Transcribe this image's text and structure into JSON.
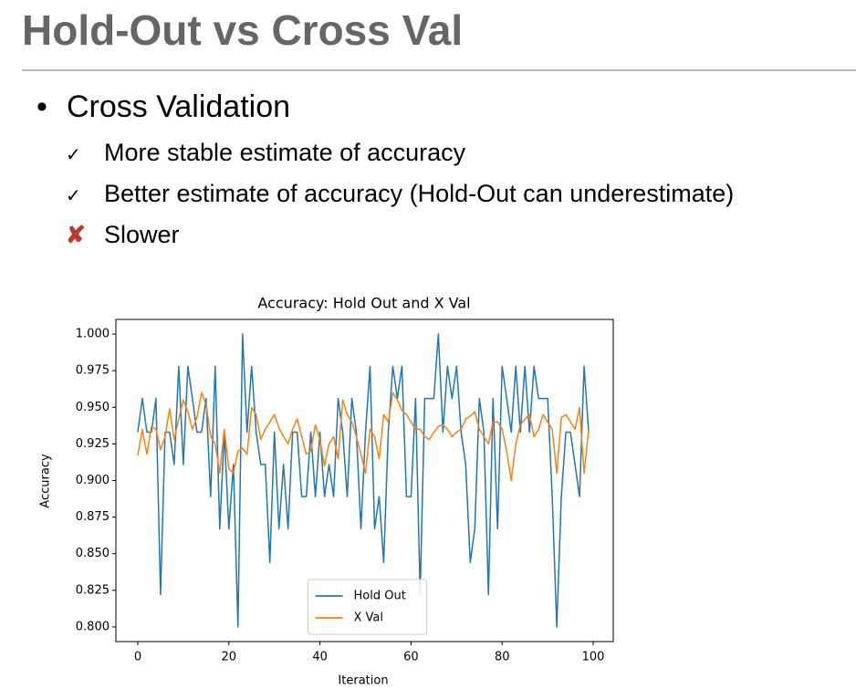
{
  "slide": {
    "title": "Hold-Out vs Cross Val",
    "bullet": "Cross Validation",
    "items": [
      {
        "mark": "✓",
        "text": "More stable estimate of accuracy"
      },
      {
        "mark": "✓",
        "text": "Better estimate of accuracy (Hold-Out can underestimate)"
      },
      {
        "mark": "✘",
        "text": "Slower"
      }
    ]
  },
  "chart_data": {
    "type": "line",
    "title": "Accuracy: Hold Out and X Val",
    "x_label": "Iteration",
    "y_label": "Accuracy",
    "x": [
      0,
      1,
      2,
      3,
      4,
      5,
      6,
      7,
      8,
      9,
      10,
      11,
      12,
      13,
      14,
      15,
      16,
      17,
      18,
      19,
      20,
      21,
      22,
      23,
      24,
      25,
      26,
      27,
      28,
      29,
      30,
      31,
      32,
      33,
      34,
      35,
      36,
      37,
      38,
      39,
      40,
      41,
      42,
      43,
      44,
      45,
      46,
      47,
      48,
      49,
      50,
      51,
      52,
      53,
      54,
      55,
      56,
      57,
      58,
      59,
      60,
      61,
      62,
      63,
      64,
      65,
      66,
      67,
      68,
      69,
      70,
      71,
      72,
      73,
      74,
      75,
      76,
      77,
      78,
      79,
      80,
      81,
      82,
      83,
      84,
      85,
      86,
      87,
      88,
      89,
      90,
      91,
      92,
      93,
      94,
      95,
      96,
      97,
      98,
      99
    ],
    "series": [
      {
        "name": "Hold Out",
        "color": "#1f77b4",
        "values": [
          0.933,
          0.956,
          0.933,
          0.933,
          0.956,
          0.822,
          0.933,
          0.933,
          0.911,
          0.978,
          0.911,
          0.978,
          0.956,
          0.933,
          0.933,
          0.956,
          0.889,
          0.978,
          0.867,
          0.933,
          0.867,
          0.911,
          0.8,
          1.0,
          0.933,
          0.978,
          0.933,
          0.911,
          0.911,
          0.844,
          0.933,
          0.867,
          0.911,
          0.867,
          0.933,
          0.933,
          0.889,
          0.889,
          0.933,
          0.889,
          0.933,
          0.889,
          0.911,
          0.889,
          0.956,
          0.933,
          0.889,
          0.956,
          0.933,
          0.867,
          0.933,
          0.978,
          0.867,
          0.889,
          0.844,
          0.933,
          0.978,
          0.956,
          0.978,
          0.889,
          0.889,
          0.956,
          0.822,
          0.956,
          0.956,
          0.956,
          1.0,
          0.933,
          0.978,
          0.956,
          0.978,
          0.933,
          0.911,
          0.844,
          0.867,
          0.956,
          0.933,
          0.822,
          0.956,
          0.867,
          0.978,
          0.956,
          0.933,
          0.978,
          0.933,
          0.978,
          0.933,
          0.978,
          0.956,
          0.956,
          0.956,
          0.889,
          0.8,
          0.889,
          0.933,
          0.933,
          0.911,
          0.889,
          0.978,
          0.933
        ]
      },
      {
        "name": "X Val",
        "color": "#ff7f0e",
        "values": [
          0.917,
          0.935,
          0.918,
          0.937,
          0.935,
          0.921,
          0.93,
          0.949,
          0.928,
          0.942,
          0.955,
          0.947,
          0.935,
          0.943,
          0.96,
          0.952,
          0.93,
          0.925,
          0.905,
          0.935,
          0.908,
          0.905,
          0.92,
          0.922,
          0.918,
          0.95,
          0.945,
          0.928,
          0.935,
          0.94,
          0.945,
          0.936,
          0.93,
          0.925,
          0.935,
          0.942,
          0.93,
          0.918,
          0.92,
          0.938,
          0.928,
          0.91,
          0.925,
          0.93,
          0.915,
          0.955,
          0.945,
          0.94,
          0.93,
          0.918,
          0.905,
          0.935,
          0.93,
          0.915,
          0.945,
          0.94,
          0.96,
          0.955,
          0.948,
          0.945,
          0.94,
          0.935,
          0.935,
          0.93,
          0.928,
          0.933,
          0.937,
          0.938,
          0.935,
          0.93,
          0.933,
          0.935,
          0.942,
          0.944,
          0.947,
          0.935,
          0.93,
          0.925,
          0.94,
          0.94,
          0.935,
          0.92,
          0.9,
          0.925,
          0.938,
          0.942,
          0.945,
          0.93,
          0.935,
          0.945,
          0.94,
          0.935,
          0.905,
          0.943,
          0.945,
          0.94,
          0.935,
          0.95,
          0.905,
          0.935
        ]
      }
    ],
    "xlim": [
      -4.8,
      104.4
    ],
    "ylim": [
      0.79,
      1.01
    ],
    "xticks": [
      0,
      20,
      40,
      60,
      80,
      100
    ],
    "yticks": [
      {
        "value": 0.8,
        "label": "0.800"
      },
      {
        "value": 0.825,
        "label": "0.825"
      },
      {
        "value": 0.85,
        "label": "0.850"
      },
      {
        "value": 0.875,
        "label": "0.875"
      },
      {
        "value": 0.9,
        "label": "0.900"
      },
      {
        "value": 0.925,
        "label": "0.925"
      },
      {
        "value": 0.95,
        "label": "0.950"
      },
      {
        "value": 0.975,
        "label": "0.975"
      },
      {
        "value": 1.0,
        "label": "1.000"
      }
    ],
    "grid": false,
    "legend": "lower center"
  }
}
